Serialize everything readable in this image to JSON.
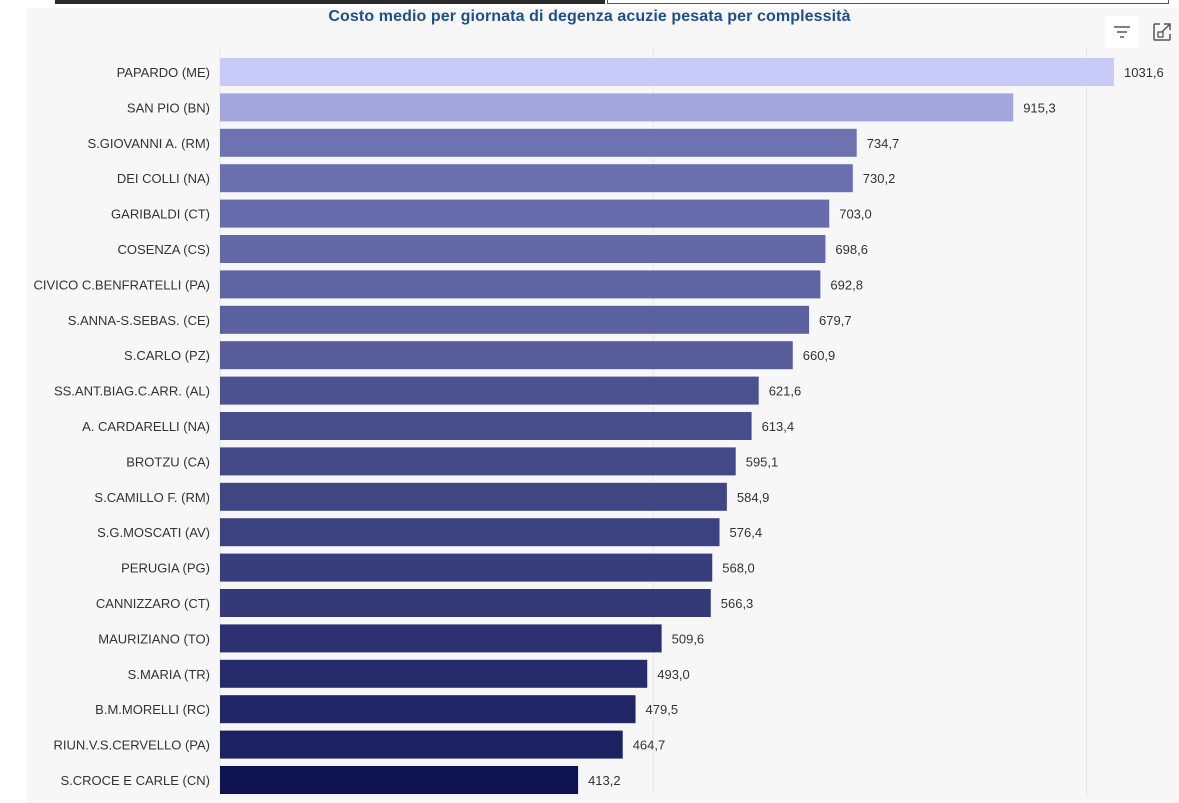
{
  "chart_data": {
    "type": "bar",
    "orientation": "horizontal",
    "title": "Costo medio per giornata di degenza acuzie pesata per complessità",
    "categories": [
      "PAPARDO (ME)",
      "SAN PIO (BN)",
      "S.GIOVANNI A. (RM)",
      "DEI COLLI (NA)",
      "GARIBALDI (CT)",
      "COSENZA (CS)",
      "CIVICO C.BENFRATELLI (PA)",
      "S.ANNA-S.SEBAS. (CE)",
      "S.CARLO (PZ)",
      "SS.ANT.BIAG.C.ARR. (AL)",
      "A. CARDARELLI (NA)",
      "BROTZU (CA)",
      "S.CAMILLO F. (RM)",
      "S.G.MOSCATI (AV)",
      "PERUGIA (PG)",
      "CANNIZZARO (CT)",
      "MAURIZIANO (TO)",
      "S.MARIA (TR)",
      "B.M.MORELLI (RC)",
      "RIUN.V.S.CERVELLO (PA)",
      "S.CROCE E CARLE (CN)"
    ],
    "values": [
      1031.6,
      915.3,
      734.7,
      730.2,
      703.0,
      698.6,
      692.8,
      679.7,
      660.9,
      621.6,
      613.4,
      595.1,
      584.9,
      576.4,
      568.0,
      566.3,
      509.6,
      493.0,
      479.5,
      464.7,
      413.2
    ],
    "value_labels": [
      "1031,6",
      "915,3",
      "734,7",
      "730,2",
      "703,0",
      "698,6",
      "692,8",
      "679,7",
      "660,9",
      "621,6",
      "613,4",
      "595,1",
      "584,9",
      "576,4",
      "568,0",
      "566,3",
      "509,6",
      "493,0",
      "479,5",
      "464,7",
      "413,2"
    ],
    "bar_colors": [
      "#c8cbf7",
      "#a3a6dd",
      "#6d72b1",
      "#6a6faf",
      "#666bab",
      "#6368a7",
      "#5f64a3",
      "#5b609f",
      "#575c9b",
      "#4c5190",
      "#484d8c",
      "#444988",
      "#404584",
      "#3c4180",
      "#383d7c",
      "#343978",
      "#2b3070",
      "#262b6b",
      "#212666",
      "#1c2161",
      "#0e1250"
    ],
    "xlim": [
      0,
      1031.6
    ],
    "gridlines": [
      0,
      500,
      1000
    ],
    "grid": true,
    "xlabel": "",
    "ylabel": ""
  },
  "toolbar": {
    "filter_icon": "filter-lines-icon",
    "focus_icon": "focus-mode-icon"
  },
  "colors": {
    "title": "#1f4e8c",
    "panel_bg": "#f7f7f7",
    "grid": "#e6e6e6",
    "label": "#333333"
  }
}
